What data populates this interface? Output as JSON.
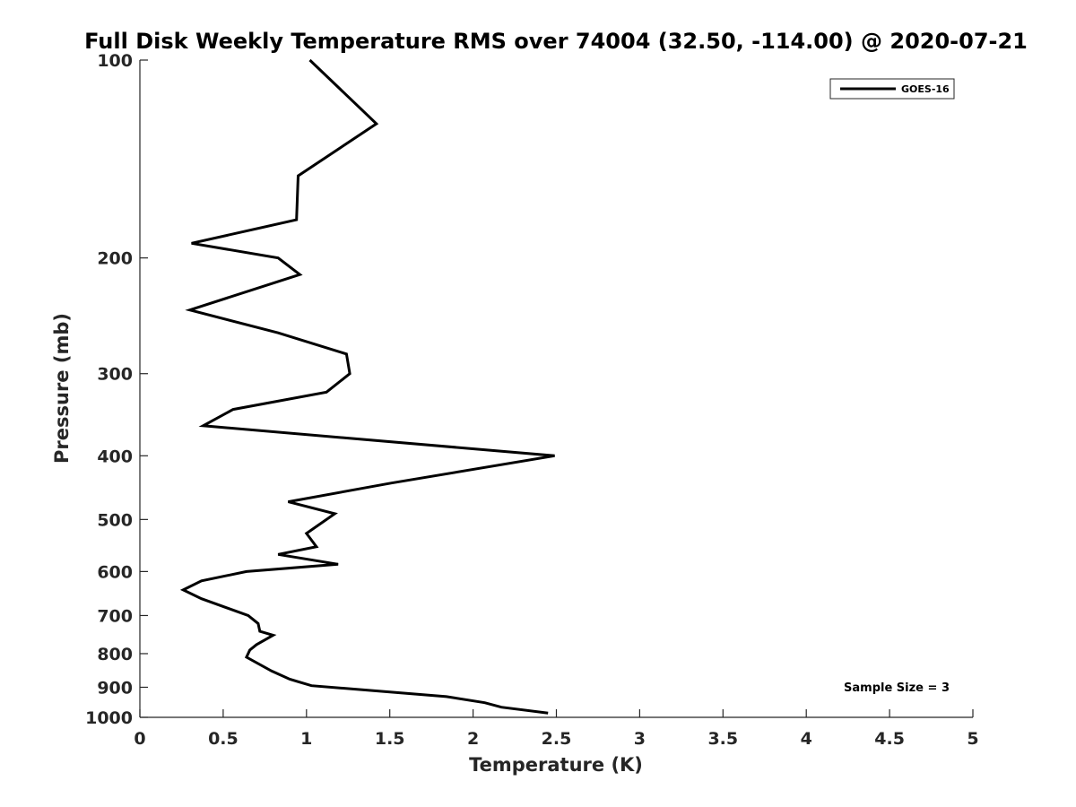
{
  "chart_data": {
    "type": "line",
    "title": "Full Disk Weekly Temperature RMS over 74004 (32.50, -114.00) @ 2020-07-21",
    "xlabel": "Temperature (K)",
    "ylabel": "Pressure (mb)",
    "xlim": [
      0,
      5
    ],
    "ylim": [
      1000,
      100
    ],
    "yscale": "log",
    "y_reversed": true,
    "xticks": [
      "0",
      "0.5",
      "1",
      "1.5",
      "2",
      "2.5",
      "3",
      "3.5",
      "4",
      "4.5",
      "5"
    ],
    "yticks": [
      "100",
      "200",
      "300",
      "400",
      "500",
      "600",
      "700",
      "800",
      "900",
      "1000"
    ],
    "grid": false,
    "legend_position": "top-right",
    "annotation": "Sample Size = 3",
    "series": [
      {
        "name": "GOES-16",
        "color": "#000000",
        "points": [
          {
            "x": 1.02,
            "y": 100
          },
          {
            "x": 1.42,
            "y": 125
          },
          {
            "x": 0.95,
            "y": 150
          },
          {
            "x": 0.94,
            "y": 175
          },
          {
            "x": 0.31,
            "y": 190
          },
          {
            "x": 0.83,
            "y": 200
          },
          {
            "x": 0.96,
            "y": 212
          },
          {
            "x": 0.3,
            "y": 240
          },
          {
            "x": 0.83,
            "y": 260
          },
          {
            "x": 1.24,
            "y": 280
          },
          {
            "x": 1.26,
            "y": 300
          },
          {
            "x": 1.12,
            "y": 320
          },
          {
            "x": 0.56,
            "y": 340
          },
          {
            "x": 0.38,
            "y": 360
          },
          {
            "x": 2.49,
            "y": 400
          },
          {
            "x": 1.51,
            "y": 440
          },
          {
            "x": 0.89,
            "y": 470
          },
          {
            "x": 1.17,
            "y": 490
          },
          {
            "x": 1.0,
            "y": 525
          },
          {
            "x": 1.06,
            "y": 550
          },
          {
            "x": 0.83,
            "y": 565
          },
          {
            "x": 1.19,
            "y": 585
          },
          {
            "x": 0.64,
            "y": 600
          },
          {
            "x": 0.37,
            "y": 620
          },
          {
            "x": 0.26,
            "y": 640
          },
          {
            "x": 0.37,
            "y": 660
          },
          {
            "x": 0.65,
            "y": 700
          },
          {
            "x": 0.71,
            "y": 720
          },
          {
            "x": 0.72,
            "y": 740
          },
          {
            "x": 0.8,
            "y": 750
          },
          {
            "x": 0.7,
            "y": 775
          },
          {
            "x": 0.66,
            "y": 790
          },
          {
            "x": 0.64,
            "y": 810
          },
          {
            "x": 0.79,
            "y": 850
          },
          {
            "x": 0.9,
            "y": 875
          },
          {
            "x": 1.03,
            "y": 895
          },
          {
            "x": 1.84,
            "y": 930
          },
          {
            "x": 2.07,
            "y": 950
          },
          {
            "x": 2.17,
            "y": 965
          },
          {
            "x": 2.45,
            "y": 985
          }
        ]
      }
    ]
  }
}
